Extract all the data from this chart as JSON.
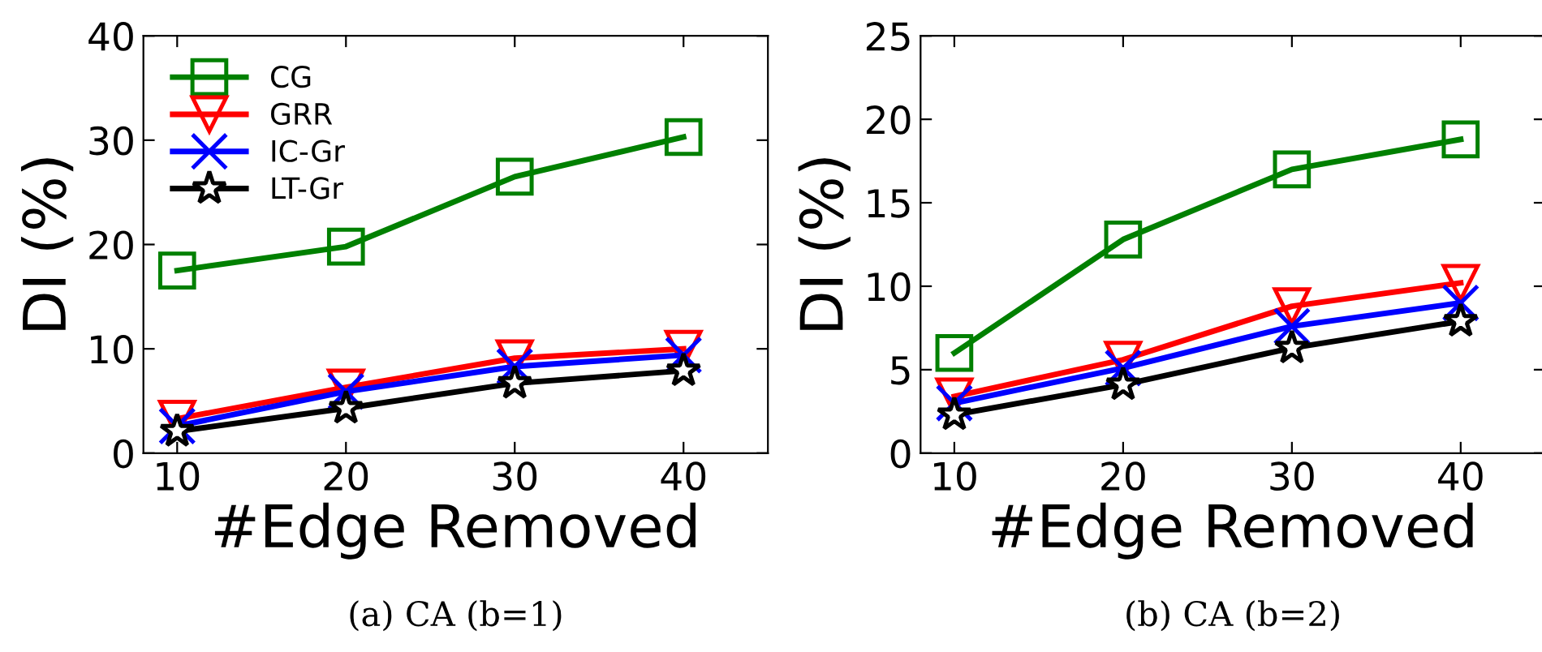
{
  "chart_data": [
    {
      "type": "line",
      "xlabel": "#Edge Removed",
      "ylabel": "DI (%)",
      "x": [
        10,
        20,
        30,
        40
      ],
      "xlim": [
        8,
        45
      ],
      "xticks": [
        10,
        20,
        30,
        40
      ],
      "ylim": [
        0,
        40
      ],
      "yticks": [
        0,
        10,
        20,
        30,
        40
      ],
      "grid": false,
      "legend": "top left",
      "annotations": [
        "(a) CA (b=1)"
      ],
      "series": [
        {
          "name": "CG",
          "color": "#008000",
          "marker": "square",
          "values": [
            17.5,
            19.8,
            26.5,
            30.3
          ]
        },
        {
          "name": "GRR",
          "color": "#ff0000",
          "marker": "triangle",
          "values": [
            3.3,
            6.3,
            9.1,
            10.0
          ]
        },
        {
          "name": "IC-Gr",
          "color": "#0000ff",
          "marker": "cross",
          "values": [
            2.6,
            5.9,
            8.3,
            9.4
          ]
        },
        {
          "name": "LT-Gr",
          "color": "#000000",
          "marker": "star",
          "values": [
            2.1,
            4.3,
            6.7,
            7.9
          ]
        }
      ]
    },
    {
      "type": "line",
      "xlabel": "#Edge Removed",
      "ylabel": "DI (%)",
      "x": [
        10,
        20,
        30,
        40
      ],
      "xlim": [
        8,
        45
      ],
      "xticks": [
        10,
        20,
        30,
        40
      ],
      "ylim": [
        0,
        25
      ],
      "yticks": [
        0,
        5,
        10,
        15,
        20,
        25
      ],
      "grid": false,
      "legend": false,
      "annotations": [
        "(b) CA (b=2)"
      ],
      "series": [
        {
          "color": "#008000",
          "marker": "square",
          "values": [
            6.0,
            12.8,
            17.0,
            18.8
          ]
        },
        {
          "color": "#ff0000",
          "marker": "triangle",
          "values": [
            3.4,
            5.6,
            8.8,
            10.2
          ]
        },
        {
          "color": "#0000ff",
          "marker": "cross",
          "values": [
            3.0,
            5.1,
            7.6,
            9.0
          ]
        },
        {
          "color": "#000000",
          "marker": "star",
          "values": [
            2.3,
            4.1,
            6.3,
            7.9
          ]
        }
      ]
    }
  ]
}
